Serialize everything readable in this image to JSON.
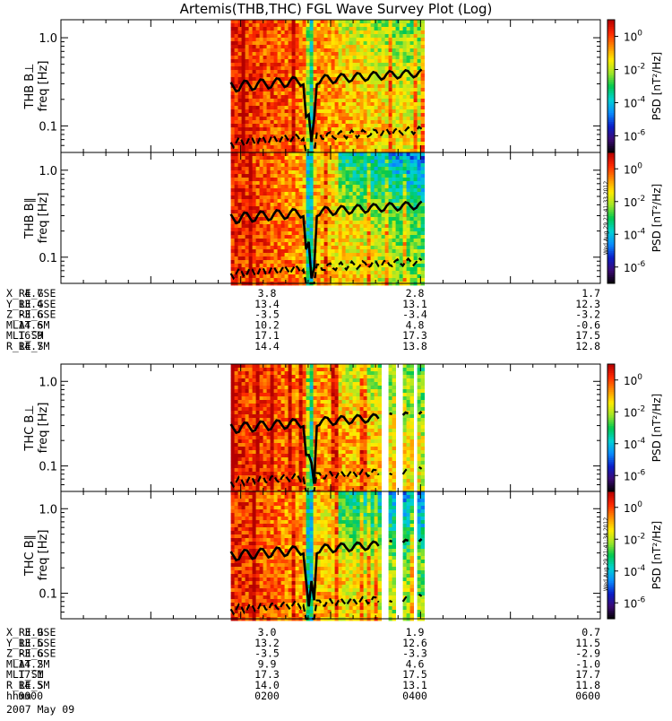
{
  "title": "Artemis(THB,THC) FGL Wave Survey Plot (Log)",
  "chart_data": {
    "type": "heatmap",
    "yscale": "log",
    "ylim": [
      0.05,
      1.6
    ],
    "x_time_range": [
      "0000",
      "0600"
    ],
    "panels": [
      {
        "id": "thb-bperp",
        "probe": "THB",
        "ylabel_top": "THB B⊥",
        "ylabel": "freq [Hz]",
        "coverage": [
          0.315,
          0.67
        ],
        "gaps": []
      },
      {
        "id": "thb-bpar",
        "probe": "THB",
        "ylabel_top": "THB B∥",
        "ylabel": "freq [Hz]",
        "coverage": [
          0.315,
          0.67
        ],
        "gaps": []
      },
      {
        "id": "thc-bperp",
        "probe": "THC",
        "ylabel_top": "THC B⊥",
        "ylabel": "freq [Hz]",
        "coverage": [
          0.315,
          0.67
        ],
        "gaps": [
          [
            0.592,
            0.605
          ],
          [
            0.618,
            0.633
          ],
          [
            0.648,
            0.66
          ]
        ]
      },
      {
        "id": "thc-bpar",
        "probe": "THC",
        "ylabel_top": "THC B∥",
        "ylabel": "freq [Hz]",
        "coverage": [
          0.315,
          0.67
        ],
        "gaps": [
          [
            0.592,
            0.605
          ],
          [
            0.618,
            0.633
          ],
          [
            0.648,
            0.66
          ]
        ]
      }
    ],
    "y_ticks": [
      {
        "value": 1.0,
        "label": "1.0"
      },
      {
        "value": 0.1,
        "label": "0.1"
      }
    ],
    "colorbar": {
      "label": "PSD [nT²/Hz]",
      "scale": "log",
      "range": [
        1e-07,
        10.0
      ],
      "ticks": [
        {
          "value": 1,
          "base": "10",
          "exp": "0"
        },
        {
          "value": 0.01,
          "base": "10",
          "exp": "-2"
        },
        {
          "value": 0.0001,
          "base": "10",
          "exp": "-4"
        },
        {
          "value": 1e-06,
          "base": "10",
          "exp": "-6"
        }
      ],
      "colors": [
        "#000000",
        "#3b0a72",
        "#0a1ec8",
        "#0a8cff",
        "#00d2d2",
        "#00c850",
        "#a0e628",
        "#ffeb00",
        "#ff8c00",
        "#ff2800",
        "#b40000"
      ]
    },
    "stamp_thb": "Wed Aug 29 21:41:33 2012",
    "stamp_thc": "Wed Aug 29 21:41:34 2012",
    "ephemeris_thb": {
      "labels": [
        "X_RE_GSE",
        "Y_RE_GSE",
        "Z_RE_GSE",
        "MLAT_SM",
        "MLT_SM",
        "R_RE_SM"
      ],
      "columns": [
        [
          "4.7",
          "13.4",
          "-3.6",
          "14.6",
          "16.9",
          "14.7"
        ],
        [
          "3.8",
          "13.4",
          "-3.5",
          "10.2",
          "17.1",
          "14.4"
        ],
        [
          "2.8",
          "13.1",
          "-3.4",
          "4.8",
          "17.3",
          "13.8"
        ],
        [
          "1.7",
          "12.3",
          "-3.2",
          "-0.6",
          "17.5",
          "12.8"
        ]
      ]
    },
    "ephemeris_thc": {
      "labels": [
        "X_RE_GSE",
        "Y_RE_GSE",
        "Z_RE_GSE",
        "MLAT_SM",
        "MLT_SM",
        "R_RE_SM",
        "hhmm"
      ],
      "columns": [
        [
          "3.9",
          "13.5",
          "-3.6",
          "14.2",
          "17.1",
          "14.5",
          "0000"
        ],
        [
          "3.0",
          "13.2",
          "-3.5",
          "9.9",
          "17.3",
          "14.0",
          "0200"
        ],
        [
          "1.9",
          "12.6",
          "-3.3",
          "4.6",
          "17.5",
          "13.1",
          "0400"
        ],
        [
          "0.7",
          "11.5",
          "-2.9",
          "-1.0",
          "17.7",
          "11.8",
          "0600"
        ]
      ]
    },
    "date": "2007 May 09"
  }
}
